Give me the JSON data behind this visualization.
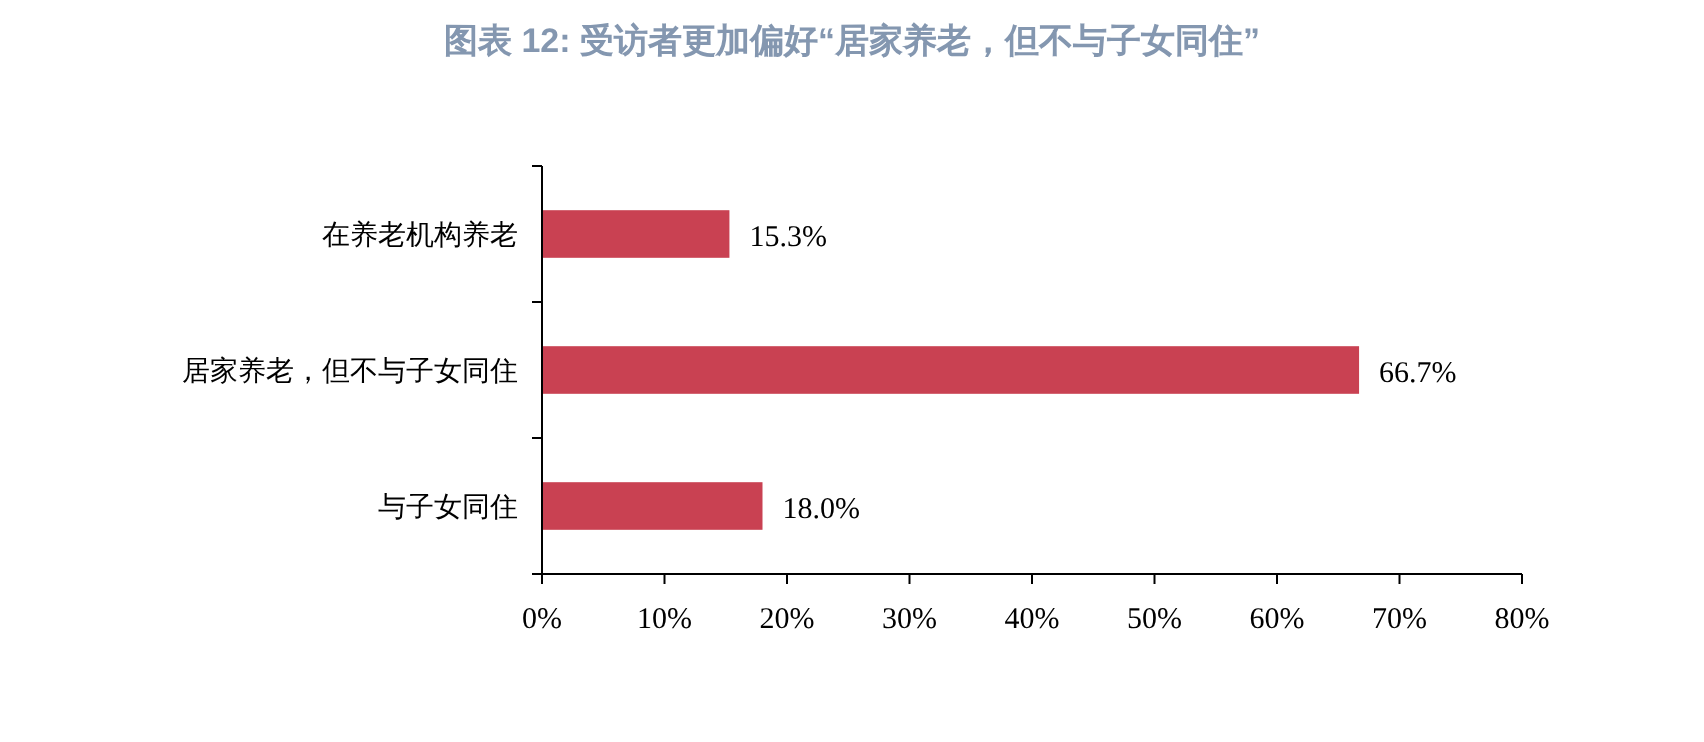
{
  "chart_data": {
    "type": "bar",
    "orientation": "horizontal",
    "title": "图表 12: 受访者更加偏好“居家养老，但不与子女同住”",
    "categories": [
      "在养老机构养老",
      "居家养老，但不与子女同住",
      "与子女同住"
    ],
    "values": [
      15.3,
      66.7,
      18.0
    ],
    "value_labels": [
      "15.3%",
      "66.7%",
      "18.0%"
    ],
    "color": "#c94152",
    "xlim": [
      0,
      80
    ],
    "xticks": [
      {
        "value": 0,
        "label": "0%"
      },
      {
        "value": 10,
        "label": "10%"
      },
      {
        "value": 20,
        "label": "20%"
      },
      {
        "value": 30,
        "label": "30%"
      },
      {
        "value": 40,
        "label": "40%"
      },
      {
        "value": 50,
        "label": "50%"
      },
      {
        "value": 60,
        "label": "60%"
      },
      {
        "value": 70,
        "label": "70%"
      },
      {
        "value": 80,
        "label": "80%"
      }
    ],
    "grid": false
  }
}
